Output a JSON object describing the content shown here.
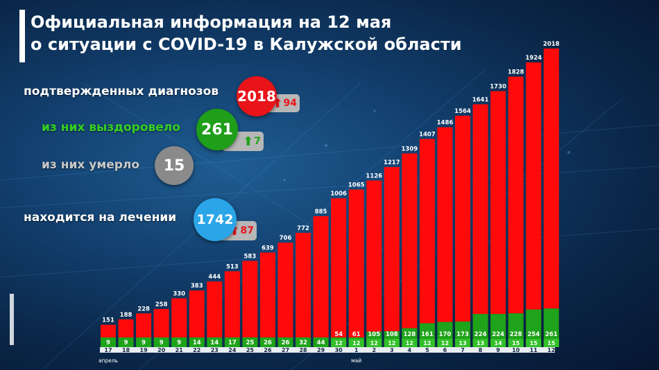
{
  "title": {
    "line1": "Официальная информация на 12 мая",
    "line2": "о ситуации с COVID-19 в Калужской области"
  },
  "stats": {
    "confirmed": {
      "label": "подтвержденных диагнозов",
      "value": "2018",
      "delta": "94",
      "color": "#e8141a",
      "label_color": "#ffffff"
    },
    "recovered": {
      "label": "из них выздоровело",
      "value": "261",
      "delta": "7",
      "color": "#1f9e1a",
      "label_color": "#35d024"
    },
    "died": {
      "label": "из них умерло",
      "value": "15",
      "color": "#8a8a8a",
      "label_color": "#c8c8c8"
    },
    "treatment": {
      "label": "находится на лечении",
      "value": "1742",
      "delta": "87",
      "color": "#2aa6e8",
      "label_color": "#ffffff"
    }
  },
  "chart_data": {
    "type": "bar",
    "categories": [
      "17",
      "18",
      "19",
      "20",
      "21",
      "22",
      "23",
      "24",
      "25",
      "26",
      "27",
      "28",
      "29",
      "30",
      "1",
      "2",
      "3",
      "4",
      "5",
      "6",
      "7",
      "8",
      "9",
      "10",
      "11",
      "12"
    ],
    "month_labels": [
      {
        "index": 0,
        "text": "апрель"
      },
      {
        "index": 14,
        "text": "май"
      }
    ],
    "series": [
      {
        "values": [
          151,
          188,
          228,
          258,
          330,
          383,
          444,
          513,
          583,
          639,
          706,
          772,
          885,
          1006,
          1065,
          1126,
          1217,
          1309,
          1407,
          1486,
          1564,
          1641,
          1730,
          1828,
          1924,
          2018
        ],
        "color": "#ff0a0a"
      },
      {
        "values": [
          9,
          9,
          9,
          9,
          9,
          14,
          14,
          17,
          25,
          26,
          26,
          32,
          44,
          54,
          61,
          105,
          108,
          128,
          161,
          170,
          173,
          224,
          224,
          228,
          254,
          261
        ],
        "color": "#1fa31a"
      },
      {
        "values": [
          null,
          null,
          null,
          null,
          null,
          null,
          null,
          null,
          null,
          null,
          null,
          null,
          null,
          12,
          12,
          12,
          12,
          12,
          12,
          12,
          13,
          13,
          14,
          15,
          15,
          15
        ],
        "color": "#33c02a"
      }
    ],
    "ylim": [
      0,
      2018
    ],
    "grid": false
  }
}
